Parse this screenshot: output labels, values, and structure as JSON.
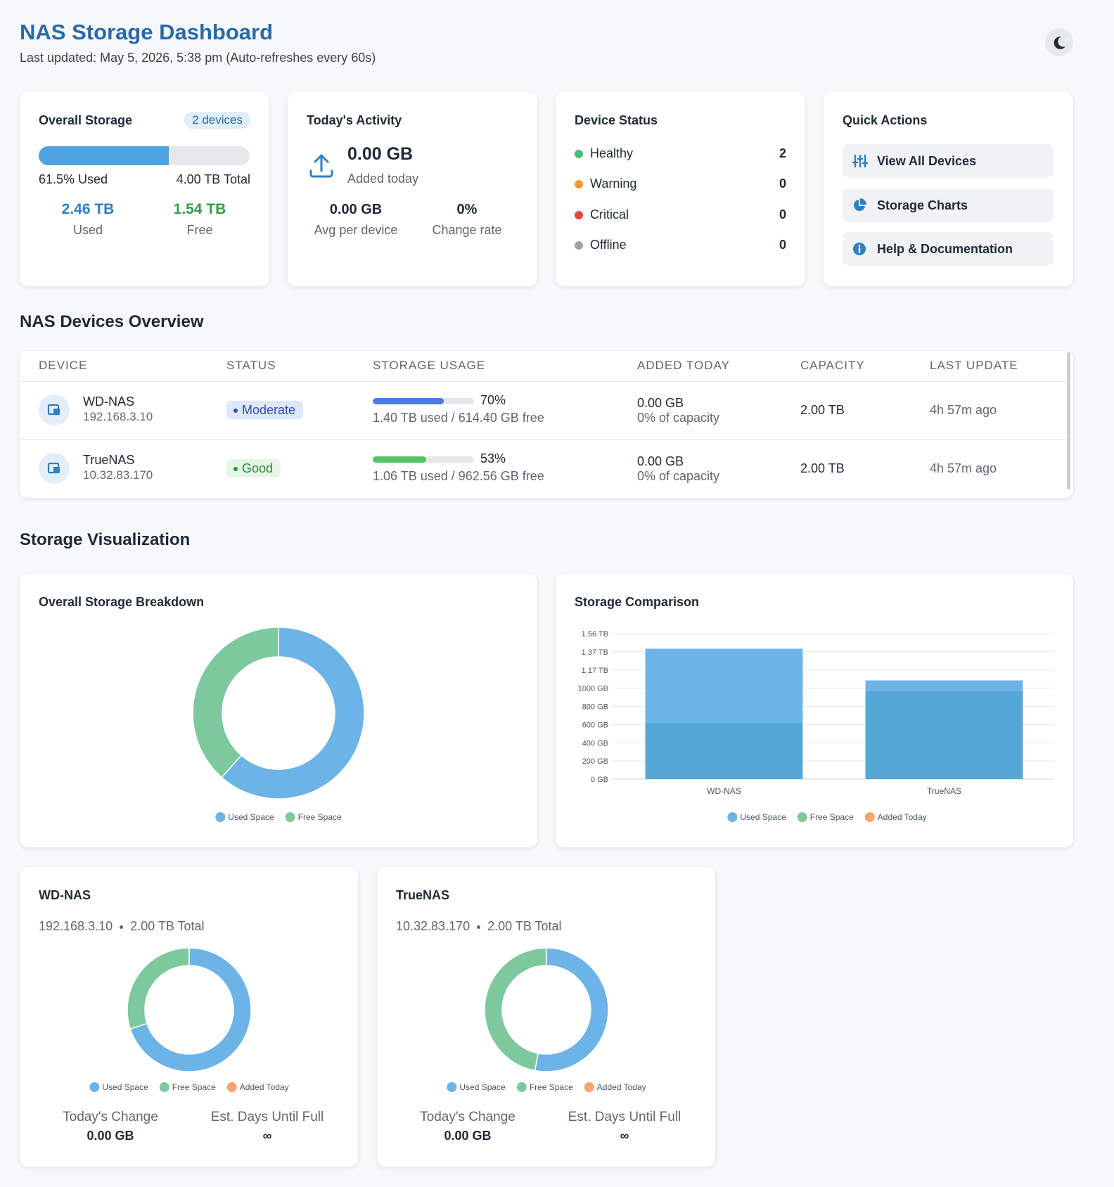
{
  "header": {
    "title": "NAS Storage Dashboard",
    "subtitle": "Last updated: May 5, 2026, 5:38 pm (Auto-refreshes every 60s)"
  },
  "overall_storage": {
    "title": "Overall Storage",
    "badge": "2 devices",
    "used_percent": 61.5,
    "used_label": "61.5% Used",
    "total_label": "4.00 TB Total",
    "used": "2.46 TB",
    "used_caption": "Used",
    "free": "1.54 TB",
    "free_caption": "Free"
  },
  "todays_activity": {
    "title": "Today's Activity",
    "added": "0.00 GB",
    "added_caption": "Added today",
    "stats": [
      {
        "value": "0.00 GB",
        "label": "Avg per device"
      },
      {
        "value": "0%",
        "label": "Change rate"
      }
    ]
  },
  "device_status": {
    "title": "Device Status",
    "items": [
      {
        "label": "Healthy",
        "count": 2,
        "color": "#48bb78"
      },
      {
        "label": "Warning",
        "count": 0,
        "color": "#ed9b33"
      },
      {
        "label": "Critical",
        "count": 0,
        "color": "#e5483e"
      },
      {
        "label": "Offline",
        "count": 0,
        "color": "#a0a4ab"
      }
    ]
  },
  "quick_actions": {
    "title": "Quick Actions",
    "actions": [
      "View All Devices",
      "Storage Charts",
      "Help & Documentation"
    ]
  },
  "devices_overview": {
    "title": "NAS Devices Overview",
    "columns": [
      "DEVICE",
      "STATUS",
      "STORAGE USAGE",
      "ADDED TODAY",
      "CAPACITY",
      "LAST UPDATE"
    ],
    "rows": [
      {
        "name": "WD-NAS",
        "ip": "192.168.3.10",
        "status": "Moderate",
        "status_color": "#2b4fa8",
        "status_bg": "#dde8fb",
        "usage_percent": 70,
        "usage_label": "70%",
        "bar_color": "#4a7be0",
        "usage_detail": "1.40 TB used / 614.40 GB free",
        "added": "0.00 GB",
        "added_detail": "0% of capacity",
        "capacity": "2.00 TB",
        "last_update": "4h 57m ago"
      },
      {
        "name": "TrueNAS",
        "ip": "10.32.83.170",
        "status": "Good",
        "status_color": "#2f8a3c",
        "status_bg": "#e4f6e6",
        "usage_percent": 53,
        "usage_label": "53%",
        "bar_color": "#55c266",
        "usage_detail": "1.06 TB used / 962.56 GB free",
        "added": "0.00 GB",
        "added_detail": "0% of capacity",
        "capacity": "2.00 TB",
        "last_update": "4h 57m ago"
      }
    ]
  },
  "storage_visualization": {
    "title": "Storage Visualization"
  },
  "device_cards": [
    {
      "ip": "192.168.3.10",
      "total": "2.00 TB Total",
      "change_label": "Today's Change",
      "change": "0.00 GB",
      "days_label": "Est. Days Until Full",
      "days": "∞"
    },
    {
      "ip": "10.32.83.170",
      "total": "2.00 TB Total",
      "change_label": "Today's Change",
      "change": "0.00 GB",
      "days_label": "Est. Days Until Full",
      "days": "∞"
    }
  ],
  "chart_data": [
    {
      "type": "donut",
      "title": "Overall Storage Breakdown",
      "categories": [
        "Used Space",
        "Free Space"
      ],
      "values": [
        2.46,
        1.54
      ],
      "colors": [
        "#6cb3e8",
        "#7dc99d"
      ]
    },
    {
      "type": "bar",
      "title": "Storage Comparison",
      "categories": [
        "WD-NAS",
        "TrueNAS"
      ],
      "series": [
        {
          "name": "Used Space",
          "color": "#6cb3e8",
          "fill": "#6cb3e8",
          "values": [
            1433.6,
            1085.44
          ]
        },
        {
          "name": "Free Space",
          "color": "#7dc99d",
          "fill": "#55a8d5",
          "values": [
            614.4,
            962.56
          ]
        },
        {
          "name": "Added Today",
          "color": "#f4a66c",
          "fill": "#f4a66c",
          "values": [
            0,
            0
          ]
        }
      ],
      "ylim": [
        0,
        1600
      ],
      "yticks": [
        {
          "value": 0,
          "label": "0 GB"
        },
        {
          "value": 200,
          "label": "200 GB"
        },
        {
          "value": 400,
          "label": "400 GB"
        },
        {
          "value": 600,
          "label": "600 GB"
        },
        {
          "value": 800,
          "label": "800 GB"
        },
        {
          "value": 1000,
          "label": "1000 GB"
        },
        {
          "value": 1200,
          "label": "1.17 TB"
        },
        {
          "value": 1400,
          "label": "1.37 TB"
        },
        {
          "value": 1600,
          "label": "1.56 TB"
        }
      ],
      "grid": true
    },
    {
      "type": "donut",
      "title": "WD-NAS",
      "categories": [
        "Used Space",
        "Free Space",
        "Added Today"
      ],
      "values": [
        1433.6,
        614.4,
        0
      ],
      "colors": [
        "#6cb3e8",
        "#7dc99d",
        "#f4a66c"
      ]
    },
    {
      "type": "donut",
      "title": "TrueNAS",
      "categories": [
        "Used Space",
        "Free Space",
        "Added Today"
      ],
      "values": [
        1085.44,
        962.56,
        0
      ],
      "colors": [
        "#6cb3e8",
        "#7dc99d",
        "#f4a66c"
      ]
    }
  ]
}
